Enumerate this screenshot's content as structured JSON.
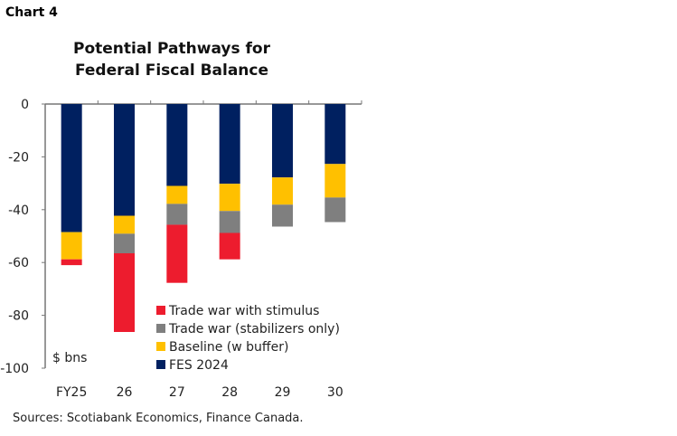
{
  "chart_label": "Chart 4",
  "source": "Sources: Scotiabank Economics, Finance Canada.",
  "chart_data": {
    "type": "bar",
    "stacked": true,
    "title": "Potential Pathways for Federal Fiscal Balance",
    "title_lines": [
      "Potential Pathways for",
      "Federal Fiscal Balance"
    ],
    "unit_label": "$ bns",
    "categories": [
      "FY25",
      "26",
      "27",
      "28",
      "29",
      "30"
    ],
    "ylim": [
      -100,
      0
    ],
    "yticks": [
      0,
      -20,
      -40,
      -60,
      -80,
      -100
    ],
    "grid": false,
    "legend_position": "bottom-right",
    "series": [
      {
        "name": "FES 2024",
        "color": "#002060",
        "values": [
          -48.5,
          -42.3,
          -31.0,
          -30.2,
          -27.8,
          -22.7
        ]
      },
      {
        "name": "Baseline (w buffer)",
        "color": "#FFC000",
        "values": [
          -10.3,
          -6.8,
          -6.8,
          -10.3,
          -10.3,
          -12.7
        ]
      },
      {
        "name": "Trade war (stabilizers only)",
        "color": "#7F7F7F",
        "values": [
          0,
          -7.4,
          -7.9,
          -8.3,
          -8.3,
          -9.3
        ]
      },
      {
        "name": "Trade war with stimulus",
        "color": "#ED1C2E",
        "values": [
          -2.2,
          -29.8,
          -22.0,
          -10.0,
          0,
          0
        ]
      }
    ],
    "legend_order": [
      3,
      2,
      1,
      0
    ]
  }
}
